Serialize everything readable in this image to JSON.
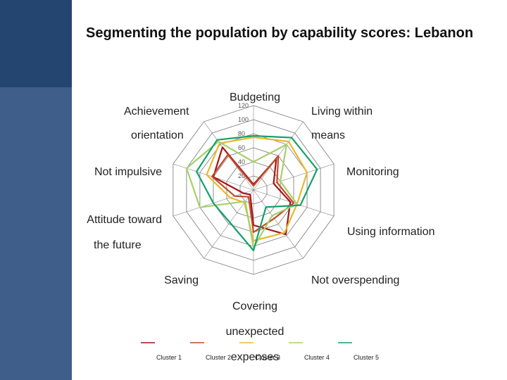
{
  "title": "Segmenting the population by capability scores: Lebanon",
  "chart_data": {
    "type": "radar",
    "title": "Segmenting the population by capability scores: Lebanon",
    "axes": [
      [
        "Budgeting"
      ],
      [
        "Living within",
        "means"
      ],
      [
        "Monitoring"
      ],
      [
        "Using information"
      ],
      [
        "Not overspending"
      ],
      [
        "Covering",
        "unexpected",
        "expenses"
      ],
      [
        "Saving"
      ],
      [
        "Attitude toward",
        "the future"
      ],
      [
        "Not impulsive"
      ],
      [
        "Achievement",
        "orientation"
      ]
    ],
    "rlim": [
      0,
      120
    ],
    "ticks": [
      20,
      40,
      60,
      80,
      100,
      120
    ],
    "grid": true,
    "legend_position": "bottom",
    "series": [
      {
        "name": "Cluster 1",
        "color": "#a31515",
        "values": [
          8,
          55,
          30,
          55,
          78,
          50,
          8,
          15,
          60,
          75
        ]
      },
      {
        "name": "Cluster 2",
        "color": "#c24a2c",
        "values": [
          6,
          60,
          35,
          60,
          50,
          60,
          12,
          28,
          62,
          62
        ]
      },
      {
        "name": "Cluster 3",
        "color": "#e8b830",
        "values": [
          75,
          85,
          80,
          65,
          75,
          72,
          22,
          35,
          70,
          82
        ]
      },
      {
        "name": "Cluster 4",
        "color": "#a6d06a",
        "values": [
          40,
          80,
          40,
          65,
          45,
          82,
          20,
          80,
          100,
          85
        ]
      },
      {
        "name": "Cluster 5",
        "color": "#15a06a",
        "values": [
          77,
          92,
          95,
          70,
          30,
          86,
          57,
          60,
          85,
          88
        ]
      }
    ]
  }
}
